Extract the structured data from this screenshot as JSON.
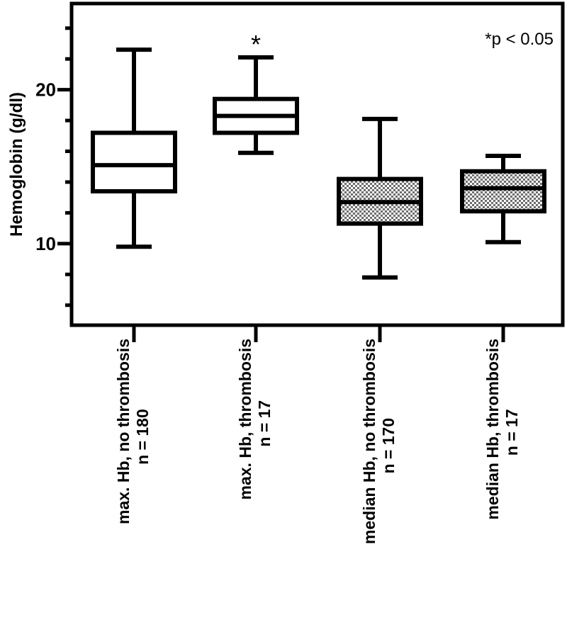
{
  "chart_data": {
    "type": "box",
    "ylabel": "Hemoglobin (g/dl)",
    "ylim": [
      4.7,
      25.6
    ],
    "y_ticks_labeled": [
      10,
      20
    ],
    "y_ticks_major": [
      10,
      20
    ],
    "y_ticks_minor": [
      6,
      8,
      12,
      14,
      16,
      18,
      22,
      24
    ],
    "categories": [
      {
        "label_line1": "max. Hb, no thrombosis",
        "label_line2": "n = 180"
      },
      {
        "label_line1": "max. Hb, thrombosis",
        "label_line2": "n = 17"
      },
      {
        "label_line1": "median Hb, no thrombosis",
        "label_line2": "n = 170"
      },
      {
        "label_line1": "median Hb, thrombosis",
        "label_line2": "n = 17"
      }
    ],
    "boxes": [
      {
        "min": 9.8,
        "q1": 13.4,
        "median": 15.1,
        "q3": 17.2,
        "max": 22.6,
        "fill": "white"
      },
      {
        "min": 15.9,
        "q1": 17.2,
        "median": 18.3,
        "q3": 19.4,
        "max": 22.1,
        "fill": "white"
      },
      {
        "min": 7.8,
        "q1": 11.3,
        "median": 12.7,
        "q3": 14.2,
        "max": 18.1,
        "fill": "checkered"
      },
      {
        "min": 10.1,
        "q1": 12.1,
        "median": 13.6,
        "q3": 14.7,
        "max": 15.7,
        "fill": "checkered"
      }
    ],
    "significance_marker": {
      "text": "*",
      "category_index": 1
    },
    "annotation": "*p < 0.05"
  },
  "colors": {
    "stroke": "#000000",
    "background": "#ffffff",
    "check_dark": "#6e6e6e",
    "check_light": "#ffffff"
  }
}
